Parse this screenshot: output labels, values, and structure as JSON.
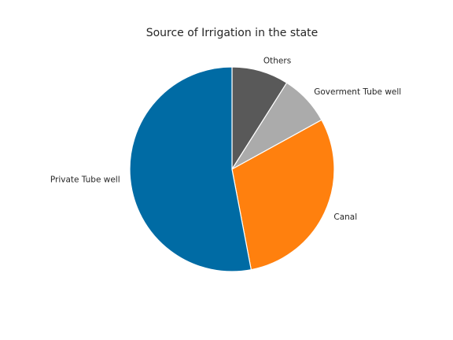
{
  "chart_data": {
    "type": "pie",
    "title": "Source of Irrigation in the state",
    "slices": [
      {
        "label": "Others",
        "value": 9,
        "color": "#595959"
      },
      {
        "label": "Goverment Tube well",
        "value": 8,
        "color": "#ababab"
      },
      {
        "label": "Canal",
        "value": 30,
        "color": "#ff800e"
      },
      {
        "label": "Private Tube well",
        "value": 53,
        "color": "#006ba4"
      }
    ],
    "start_angle_deg": 90,
    "direction": "clockwise"
  }
}
